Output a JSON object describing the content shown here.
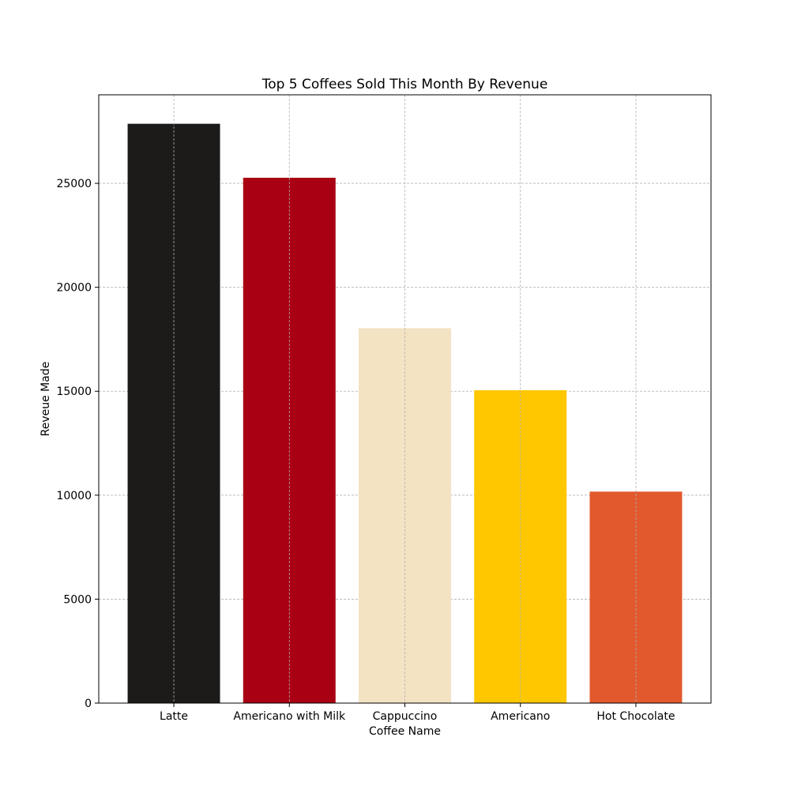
{
  "chart_data": {
    "type": "bar",
    "title": "Top 5 Coffees Sold This Month By Revenue",
    "xlabel": "Coffee Name",
    "ylabel": "Reveue Made",
    "categories": [
      "Latte",
      "Americano with Milk",
      "Cappuccino",
      "Americano",
      "Hot Chocolate"
    ],
    "values": [
      27866,
      25269,
      18035,
      15048,
      10172
    ],
    "colors": [
      "#1c1b1a",
      "#a90013",
      "#f3e3c3",
      "#fec700",
      "#e2592d"
    ],
    "ylim": [
      0,
      29259
    ],
    "yticks": [
      0,
      5000,
      10000,
      15000,
      20000,
      25000
    ],
    "grid": true
  }
}
